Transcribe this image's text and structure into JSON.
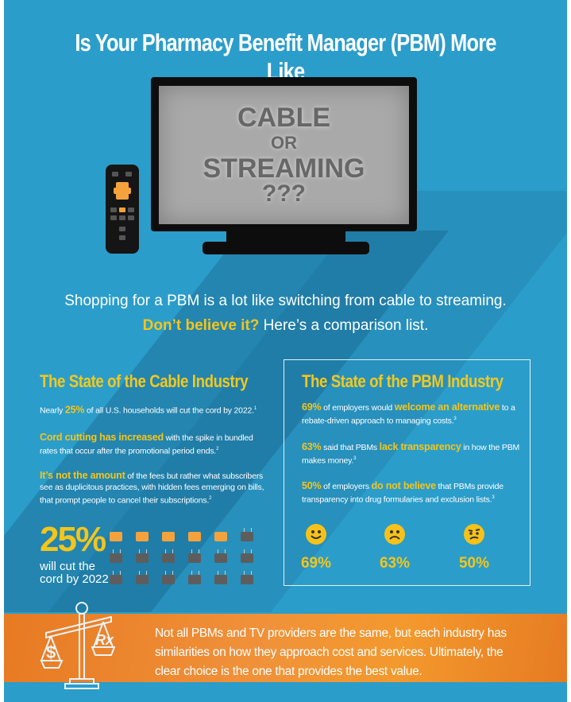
{
  "header": {
    "title": "Is Your Pharmacy Benefit Manager (PBM) More Like"
  },
  "tv_screen": {
    "line1": "CABLE",
    "line2": "OR",
    "line3": "STREAMING",
    "line4": "???"
  },
  "tagline": {
    "line1": "Shopping for a PBM is a lot like switching from cable to streaming.",
    "highlight": "Don’t believe it?",
    "line2_rest": " Here’s a comparison list."
  },
  "cable": {
    "title": "The State of the Cable Industry",
    "items": [
      {
        "pre": "Nearly ",
        "hl": "25%",
        "post": " of all U.S. households will cut the cord by 2022.",
        "note": "1"
      },
      {
        "pre": "",
        "hl": "Cord cutting has increased",
        "post": " with the spike in bundled rates that occur after the promotional period ends.",
        "note": "2"
      },
      {
        "pre": "",
        "hl": "It’s not the amount",
        "post": " of the fees but rather what subscribers see as duplicitous practices, with hidden fees emerging on bills, that prompt people to cancel their subscriptions.",
        "note": "2"
      }
    ],
    "stat": {
      "value": "25%",
      "caption1": "will cut the",
      "caption2": "cord by 2022"
    },
    "icons": {
      "total": 18,
      "highlighted": 5,
      "highlight_color": "#f6a23c",
      "base_color": "#5d5d5d"
    }
  },
  "pbm": {
    "title": "The State of the PBM Industry",
    "items": [
      {
        "hl": "69%",
        "mid": " of employers would ",
        "hl2": "welcome an alternative",
        "post": " to a rebate-driven approach to managing costs.",
        "note": "3"
      },
      {
        "hl": "63%",
        "mid": " said that PBMs ",
        "hl2": "lack transparency",
        "post": " in how the PBM makes money.",
        "note": "3"
      },
      {
        "hl": "50%",
        "mid": " of employers ",
        "hl2": "do not believe",
        "post": " that PBMs provide transparency into drug formularies and exclusion lists.",
        "note": "3"
      }
    ],
    "faces": [
      {
        "icon": "smiley-happy-icon",
        "value": "69%"
      },
      {
        "icon": "smiley-sad-icon",
        "value": "63%"
      },
      {
        "icon": "smiley-confused-icon",
        "value": "50%"
      }
    ]
  },
  "banner": {
    "text": "Not all PBMs and TV providers are the same, but each industry has similarities on how they approach cost and services. Ultimately, the clear choice is the one that provides the best value.",
    "scale_left": "$",
    "scale_right": "Rx"
  },
  "colors": {
    "background": "#2b9dca",
    "accent_yellow": "#f4c51b",
    "banner_orange": "#ec8a2c"
  }
}
